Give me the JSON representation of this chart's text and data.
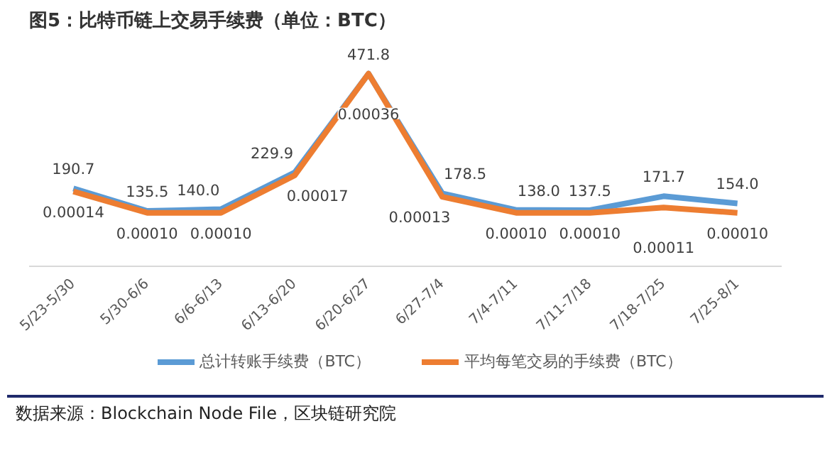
{
  "chart_data": {
    "type": "line",
    "title": "图5：比特币链上交易手续费（单位：BTC）",
    "categories": [
      "5/23-5/30",
      "5/30-6/6",
      "6/6-6/13",
      "6/13-6/20",
      "6/20-6/27",
      "6/27-7/4",
      "7/4-7/11",
      "7/11-7/18",
      "7/18-7/25",
      "7/25-8/1"
    ],
    "series": [
      {
        "name": "总计转账手续费（BTC）",
        "color": "#5b9bd5",
        "values": [
          190.7,
          135.5,
          140.0,
          229.9,
          471.8,
          178.5,
          138.0,
          137.5,
          171.7,
          154.0
        ],
        "value_labels": [
          "190.7",
          "135.5",
          "140.0",
          "229.9",
          "471.8",
          "178.5",
          "138.0",
          "137.5",
          "171.7",
          "154.0"
        ]
      },
      {
        "name": "平均每笔交易的手续费（BTC）",
        "color": "#ed7d31",
        "axis": "y2",
        "values": [
          0.00014,
          0.0001,
          0.0001,
          0.00017,
          0.00036,
          0.00013,
          0.0001,
          0.0001,
          0.00011,
          0.0001
        ],
        "value_labels": [
          "0.00014",
          "0.00010",
          "0.00010",
          "0.00017",
          "0.00036",
          "0.00013",
          "0.00010",
          "0.00010",
          "0.00011",
          "0.00010"
        ]
      }
    ],
    "tick_labels": "x",
    "grid": false,
    "legend": "bottom",
    "marker": "none",
    "line_style": "solid",
    "annotations": [
      "数据来源：Blockchain Node File，区块链研究院"
    ]
  }
}
